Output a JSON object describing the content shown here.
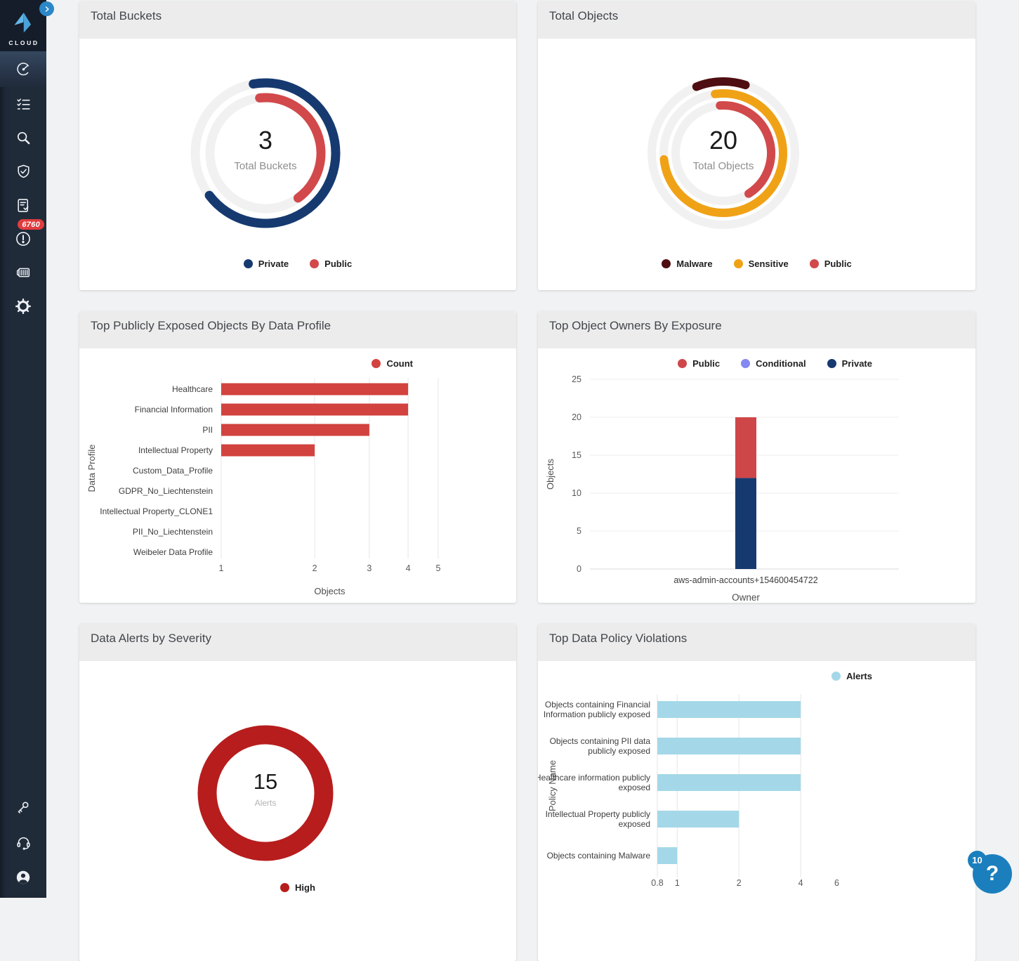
{
  "app": {
    "logo_text": "CLOUD"
  },
  "sidebar": {
    "alert_badge": "6760",
    "items": [
      {
        "icon": "dashboard-icon",
        "active": true
      },
      {
        "icon": "checklist-icon"
      },
      {
        "icon": "search-icon"
      },
      {
        "icon": "shield-check-icon"
      },
      {
        "icon": "report-icon"
      },
      {
        "icon": "alerts-icon",
        "badge": "6760"
      },
      {
        "icon": "container-icon"
      },
      {
        "icon": "settings-gear-icon"
      },
      {
        "icon": "key-icon"
      },
      {
        "icon": "headset-icon"
      },
      {
        "icon": "account-icon"
      }
    ]
  },
  "help_widget": {
    "notification_count": "10",
    "help_symbol": "?"
  },
  "panels": [
    {
      "title": "Total Buckets"
    },
    {
      "title": "Total Objects"
    },
    {
      "title": "Top Publicly Exposed Objects By Data Profile"
    },
    {
      "title": "Top Object Owners By Exposure"
    },
    {
      "title": "Data Alerts by Severity"
    },
    {
      "title": "Top Data Policy Violations"
    }
  ],
  "chart_data": [
    {
      "type": "ring",
      "title": "Total Buckets",
      "center_value": "3",
      "center_label": "Total Buckets",
      "rings": [
        {
          "name": "Private",
          "color": "#163a70",
          "start_deg": -10,
          "sweep_deg": 243
        },
        {
          "name": "Public",
          "color": "#d2494b",
          "start_deg": -6,
          "sweep_deg": 150
        }
      ]
    },
    {
      "type": "ring",
      "title": "Total Objects",
      "center_value": "20",
      "center_label": "Total Objects",
      "rings": [
        {
          "name": "Malware",
          "color": "#4f0e11",
          "start_deg": -22,
          "sweep_deg": 40
        },
        {
          "name": "Sensitive",
          "color": "#f0a216",
          "start_deg": -8,
          "sweep_deg": 272
        },
        {
          "name": "Public",
          "color": "#d2494b",
          "start_deg": -4,
          "sweep_deg": 152
        }
      ]
    },
    {
      "type": "bar",
      "orientation": "horizontal",
      "title": "Top Publicly Exposed Objects By Data Profile",
      "series": [
        {
          "name": "Count",
          "color": "#d2423e"
        }
      ],
      "categories": [
        "Healthcare",
        "Financial Information",
        "PII",
        "Intellectual Property",
        "Custom_Data_Profile",
        "GDPR_No_Liechtenstein",
        "Intellectual Property_CLONE1",
        "PII_No_Liechtenstein",
        "Weibeler Data Profile"
      ],
      "values": [
        4,
        4,
        3,
        2,
        0,
        0,
        0,
        0,
        0
      ],
      "x_scale": "log",
      "x_base": 1,
      "x_ticks": [
        1,
        2,
        3,
        4,
        5
      ],
      "xlabel": "Objects",
      "ylabel": "Data Profile"
    },
    {
      "type": "bar",
      "orientation": "vertical-stacked",
      "title": "Top Object Owners By Exposure",
      "categories": [
        "aws-admin-accounts+154600454722"
      ],
      "series": [
        {
          "name": "Public",
          "color": "#cf4649",
          "value": 8
        },
        {
          "name": "Conditional",
          "color": "#8488f1",
          "value": 0
        },
        {
          "name": "Private",
          "color": "#163a70",
          "value": 12
        }
      ],
      "stack_bottom_to_top": [
        "Private",
        "Public"
      ],
      "y_ticks": [
        0,
        5,
        10,
        15,
        20,
        25
      ],
      "ylim": [
        0,
        25
      ],
      "xlabel": "Owner",
      "ylabel": "Objects"
    },
    {
      "type": "ring",
      "title": "Data Alerts by Severity",
      "center_value": "15",
      "center_label": "Alerts",
      "rings": [
        {
          "name": "High",
          "color": "#b71d1d",
          "start_deg": 0,
          "sweep_deg": 360
        }
      ]
    },
    {
      "type": "bar",
      "orientation": "horizontal",
      "title": "Top Data Policy Violations",
      "series": [
        {
          "name": "Alerts",
          "color": "#a4d8e8"
        }
      ],
      "categories": [
        [
          "Objects containing Financial",
          "Information publicly exposed"
        ],
        [
          "Objects containing PII data",
          "publicly exposed"
        ],
        [
          "Healthcare information publicly",
          "exposed"
        ],
        [
          "Intellectual Property publicly",
          "exposed"
        ],
        [
          "Objects containing Malware"
        ]
      ],
      "values": [
        4,
        4,
        4,
        2,
        1
      ],
      "x_scale": "log",
      "x_base": 0.8,
      "x_ticks": [
        0.8,
        1,
        2,
        4,
        6
      ],
      "ylabel": "Policy Name"
    }
  ]
}
